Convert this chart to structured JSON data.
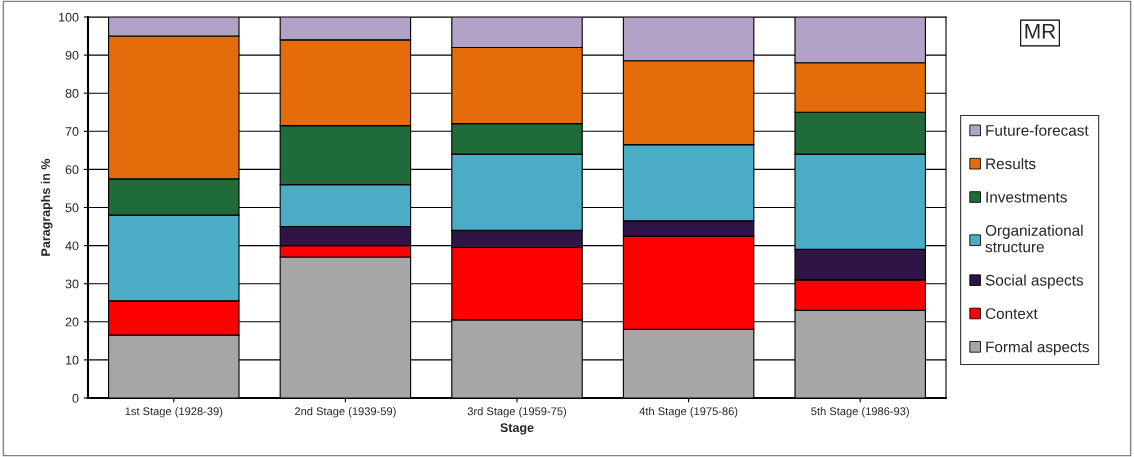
{
  "chart_data": {
    "type": "bar",
    "title": "MR",
    "xlabel": "Stage",
    "ylabel": "Paragraphs in %",
    "categories": [
      "1st Stage (1928-39)",
      "2nd Stage (1939-59)",
      "3rd Stage (1959-75)",
      "4th Stage (1975-86)",
      "5th Stage (1986-93)"
    ],
    "stacked": true,
    "series": [
      {
        "name": "Formal aspects",
        "color": "#a6a6a6",
        "values": [
          16.5,
          37,
          20.5,
          18,
          23
        ]
      },
      {
        "name": "Context",
        "color": "#ff0000",
        "values": [
          9,
          3,
          19,
          24.5,
          8
        ]
      },
      {
        "name": "Social aspects",
        "color": "#2e1546",
        "values": [
          0,
          5,
          4.5,
          4,
          8
        ]
      },
      {
        "name": "Organizational structure",
        "color": "#4bacc6",
        "values": [
          22.5,
          11,
          20,
          20,
          25
        ]
      },
      {
        "name": "Investments",
        "color": "#1f6b3a",
        "values": [
          9.5,
          15.5,
          8,
          0,
          11
        ]
      },
      {
        "name": "Results",
        "color": "#e46c0a",
        "values": [
          37.5,
          22.5,
          20,
          22,
          13
        ]
      },
      {
        "name": "Future-forecast",
        "color": "#b3a2c7",
        "values": [
          5,
          6,
          8,
          11.5,
          12
        ]
      }
    ],
    "ylim": [
      0,
      100
    ],
    "yticks": [
      0,
      10,
      20,
      30,
      40,
      50,
      60,
      70,
      80,
      90,
      100
    ],
    "grid": "y",
    "legend": "right"
  }
}
